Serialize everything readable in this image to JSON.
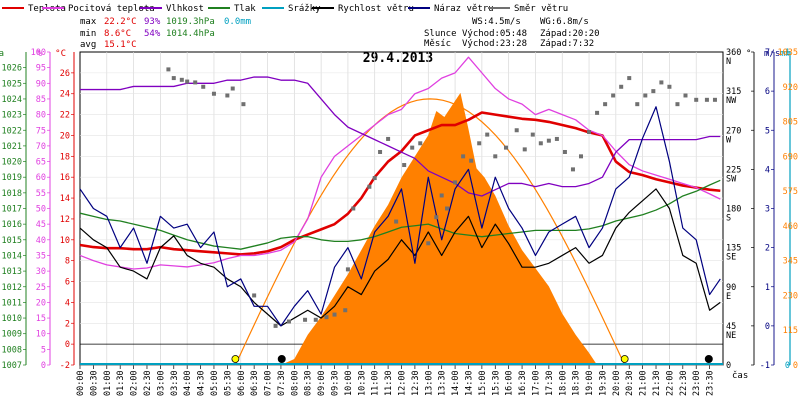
{
  "legend": [
    {
      "label": "Teplota",
      "color": "#e00000"
    },
    {
      "label": "Pocitová teplota",
      "color": "#e040e0"
    },
    {
      "label": "Vlhkost",
      "color": "#8000c0"
    },
    {
      "label": "Tlak",
      "color": "#208020"
    },
    {
      "label": "Srážky",
      "color": "#00a0c0"
    },
    {
      "label": "Rychlost větru",
      "color": "#000000"
    },
    {
      "label": "Náraz větru",
      "color": "#000080"
    },
    {
      "label": "Směr větru",
      "color": "#707070"
    }
  ],
  "stats": {
    "max_label": "max",
    "max_temp": "22.2°C",
    "max_hum": "93%",
    "max_press": "1019.3hPa",
    "max_rain": "0.0mm",
    "min_label": "min",
    "min_temp": "8.6°C",
    "min_hum": "54%",
    "min_press": "1014.4hPa",
    "avg_label": "avg",
    "avg_temp": "15.1°C"
  },
  "wind_info": {
    "ws": "WS:4.5m/s",
    "wg": "WG:6.8m/s"
  },
  "sun_info": {
    "label": "Slunce",
    "rise": "Východ:05:48",
    "set": "Západ:20:20"
  },
  "moon_info": {
    "label": "Měsíc",
    "rise": "Východ:23:28",
    "set": "Západ:7:32"
  },
  "chart_data": {
    "type": "line",
    "title": "29.4.2013",
    "xlabel": "čas",
    "x_ticks": [
      "00:00",
      "00:30",
      "01:00",
      "01:30",
      "02:00",
      "02:30",
      "03:00",
      "03:30",
      "04:00",
      "04:30",
      "05:00",
      "05:30",
      "06:00",
      "06:30",
      "07:00",
      "07:30",
      "08:00",
      "08:30",
      "09:00",
      "09:30",
      "10:00",
      "10:30",
      "11:00",
      "11:30",
      "12:00",
      "12:30",
      "13:00",
      "13:30",
      "14:00",
      "14:30",
      "15:00",
      "15:30",
      "16:00",
      "16:30",
      "17:00",
      "17:30",
      "18:00",
      "18:30",
      "19:00",
      "19:30",
      "20:00",
      "20:30",
      "21:00",
      "21:30",
      "22:00",
      "22:30",
      "23:00",
      "23:30"
    ],
    "axes": {
      "hpa": {
        "label": "hPa",
        "color": "#208020",
        "range": [
          1007,
          1027
        ],
        "ticks": [
          1007,
          1008,
          1009,
          1010,
          1011,
          1012,
          1013,
          1014,
          1015,
          1016,
          1017,
          1018,
          1019,
          1020,
          1021,
          1022,
          1023,
          1024,
          1025,
          1026
        ]
      },
      "pct": {
        "label": "%",
        "color": "#e040e0",
        "range": [
          0,
          100
        ],
        "ticks": [
          0,
          5,
          10,
          15,
          20,
          25,
          30,
          35,
          40,
          45,
          50,
          55,
          60,
          65,
          70,
          75,
          80,
          85,
          90,
          95,
          100
        ]
      },
      "temp": {
        "label": "°C",
        "color": "#e00000",
        "range": [
          -2,
          28
        ],
        "ticks": [
          -2,
          0,
          2,
          4,
          6,
          8,
          10,
          12,
          14,
          16,
          18,
          20,
          22,
          24,
          26
        ]
      },
      "dir": {
        "label": "°",
        "color": "#000000",
        "range": [
          0,
          360
        ],
        "ticks": [
          0,
          45,
          90,
          135,
          180,
          225,
          270,
          315,
          360
        ],
        "labels": [
          "",
          "NE",
          "E",
          "SE",
          "S",
          "SW",
          "W",
          "NW",
          "N"
        ]
      },
      "wind": {
        "label": "m/s",
        "color": "#000080",
        "range": [
          -1,
          7
        ],
        "ticks": [
          -1,
          0,
          1,
          2,
          3,
          4,
          5,
          6,
          7
        ]
      },
      "rain": {
        "label": "mm",
        "color": "#00a0c0",
        "range": [
          0,
          1
        ],
        "ticks": [
          0,
          1
        ]
      },
      "solar": {
        "label": "W",
        "color": "#ff8000",
        "range": [
          0,
          1035
        ],
        "ticks": [
          0,
          115,
          230,
          345,
          460,
          575,
          690,
          805,
          920,
          1035
        ]
      }
    },
    "series": [
      {
        "name": "Teplota",
        "axis": "temp",
        "color": "#e00000",
        "x": [
          0,
          0.5,
          1,
          1.5,
          2,
          2.5,
          3,
          3.5,
          4,
          4.5,
          5,
          5.5,
          6,
          6.5,
          7,
          7.5,
          8,
          8.5,
          9,
          9.5,
          10,
          10.5,
          11,
          11.5,
          12,
          12.5,
          13,
          13.5,
          14,
          14.5,
          15,
          15.5,
          16,
          16.5,
          17,
          17.5,
          18,
          18.5,
          19,
          19.5,
          20,
          20.5,
          21,
          21.5,
          22,
          22.5,
          23,
          23.5,
          23.9
        ],
        "y": [
          9.5,
          9.3,
          9.2,
          9.2,
          9.1,
          9.1,
          9.3,
          9.1,
          9.0,
          8.9,
          8.8,
          8.7,
          8.6,
          8.7,
          8.9,
          9.3,
          10.0,
          10.5,
          11.0,
          11.5,
          12.5,
          14.0,
          16.0,
          17.5,
          18.5,
          20.0,
          20.5,
          21.0,
          21.0,
          21.5,
          22.2,
          22.0,
          21.8,
          21.6,
          21.5,
          21.3,
          21.0,
          20.7,
          20.3,
          20.0,
          17.5,
          16.5,
          16.2,
          15.8,
          15.5,
          15.2,
          15.0,
          14.8,
          14.7
        ]
      },
      {
        "name": "Pocitová teplota",
        "axis": "temp",
        "color": "#e040e0",
        "x": [
          0,
          0.5,
          1,
          1.5,
          2,
          2.5,
          3,
          3.5,
          4,
          4.5,
          5,
          5.5,
          6,
          6.5,
          7,
          7.5,
          8,
          8.5,
          9,
          9.5,
          10,
          10.5,
          11,
          11.5,
          12,
          12.5,
          13,
          13.5,
          14,
          14.5,
          15,
          15.5,
          16,
          16.5,
          17,
          17.5,
          18,
          18.5,
          19,
          19.5,
          20,
          20.5,
          21,
          21.5,
          22,
          22.5,
          23,
          23.5,
          23.9
        ],
        "y": [
          8.5,
          8.0,
          7.6,
          7.4,
          7.2,
          7.3,
          7.6,
          7.5,
          7.4,
          7.6,
          7.8,
          8.2,
          8.5,
          8.5,
          8.7,
          9.0,
          9.8,
          12.0,
          16.0,
          18.0,
          19.0,
          20.0,
          21.0,
          22.0,
          22.5,
          24.0,
          24.5,
          25.5,
          26.0,
          27.5,
          26.0,
          24.5,
          23.5,
          23.0,
          22.0,
          22.5,
          22.0,
          21.5,
          20.5,
          20.0,
          18.5,
          17.2,
          16.6,
          16.2,
          15.8,
          15.4,
          15.0,
          14.4,
          13.9
        ]
      },
      {
        "name": "Vlhkost",
        "axis": "pct",
        "color": "#8000c0",
        "x": [
          0,
          0.5,
          1,
          1.5,
          2,
          2.5,
          3,
          3.5,
          4,
          4.5,
          5,
          5.5,
          6,
          6.5,
          7,
          7.5,
          8,
          8.5,
          9,
          9.5,
          10,
          10.5,
          11,
          11.5,
          12,
          12.5,
          13,
          13.5,
          14,
          14.5,
          15,
          15.5,
          16,
          16.5,
          17,
          17.5,
          18,
          18.5,
          19,
          19.5,
          20,
          20.5,
          21,
          21.5,
          22,
          22.5,
          23,
          23.5,
          23.9
        ],
        "y": [
          88,
          88,
          88,
          88,
          89,
          89,
          89,
          89,
          90,
          90,
          90,
          91,
          91,
          92,
          92,
          91,
          91,
          90,
          85,
          80,
          76,
          74,
          72,
          70,
          68,
          66,
          62,
          60,
          58,
          55,
          54,
          56,
          58,
          58,
          57,
          58,
          57,
          57,
          58,
          60,
          68,
          72,
          72,
          72,
          72,
          72,
          72,
          73,
          73
        ]
      },
      {
        "name": "Tlak",
        "axis": "hpa",
        "color": "#208020",
        "x": [
          0,
          0.5,
          1,
          1.5,
          2,
          2.5,
          3,
          3.5,
          4,
          4.5,
          5,
          5.5,
          6,
          6.5,
          7,
          7.5,
          8,
          8.5,
          9,
          9.5,
          10,
          10.5,
          11,
          11.5,
          12,
          12.5,
          13,
          13.5,
          14,
          14.5,
          15,
          15.5,
          16,
          16.5,
          17,
          17.5,
          18,
          18.5,
          19,
          19.5,
          20,
          20.5,
          21,
          21.5,
          22,
          22.5,
          23,
          23.5,
          23.9
        ],
        "y": [
          1016.7,
          1016.5,
          1016.3,
          1016.2,
          1016.0,
          1015.8,
          1015.6,
          1015.3,
          1015.0,
          1014.8,
          1014.6,
          1014.5,
          1014.4,
          1014.6,
          1014.8,
          1015.1,
          1015.2,
          1015.2,
          1015.0,
          1014.9,
          1014.9,
          1015.0,
          1015.2,
          1015.5,
          1015.8,
          1015.9,
          1016.0,
          1015.7,
          1015.4,
          1015.3,
          1015.2,
          1015.3,
          1015.4,
          1015.5,
          1015.6,
          1015.6,
          1015.6,
          1015.6,
          1015.7,
          1015.9,
          1016.2,
          1016.4,
          1016.6,
          1016.9,
          1017.3,
          1017.8,
          1018.1,
          1018.5,
          1018.8
        ]
      },
      {
        "name": "Rychlost větru",
        "axis": "wind",
        "color": "#000000",
        "x": [
          0,
          0.5,
          1,
          1.5,
          2,
          2.5,
          3,
          3.5,
          4,
          4.5,
          5,
          5.5,
          6,
          6.5,
          7,
          7.5,
          8,
          8.5,
          9,
          9.5,
          10,
          10.5,
          11,
          11.5,
          12,
          12.5,
          13,
          13.5,
          14,
          14.5,
          15,
          15.5,
          16,
          16.5,
          17,
          17.5,
          18,
          18.5,
          19,
          19.5,
          20,
          20.5,
          21,
          21.5,
          22,
          22.5,
          23,
          23.5,
          23.9
        ],
        "y": [
          2.5,
          2.2,
          2.0,
          1.5,
          1.4,
          1.2,
          2.0,
          2.3,
          1.8,
          1.6,
          1.5,
          1.2,
          1.0,
          0.6,
          0.3,
          0.0,
          0.2,
          0.4,
          0.2,
          0.5,
          1.0,
          0.8,
          1.4,
          1.7,
          2.2,
          1.8,
          2.4,
          1.8,
          2.4,
          2.8,
          2.0,
          2.6,
          2.1,
          1.5,
          1.5,
          1.6,
          1.8,
          2.0,
          1.6,
          1.8,
          2.5,
          2.9,
          3.2,
          3.5,
          3.0,
          1.8,
          1.6,
          0.4,
          0.6
        ]
      },
      {
        "name": "Náraz větru",
        "axis": "wind",
        "color": "#000080",
        "x": [
          0,
          0.5,
          1,
          1.5,
          2,
          2.5,
          3,
          3.5,
          4,
          4.5,
          5,
          5.5,
          6,
          6.5,
          7,
          7.5,
          8,
          8.5,
          9,
          9.5,
          10,
          10.5,
          11,
          11.5,
          12,
          12.5,
          13,
          13.5,
          14,
          14.5,
          15,
          15.5,
          16,
          16.5,
          17,
          17.5,
          18,
          18.5,
          19,
          19.5,
          20,
          20.5,
          21,
          21.5,
          22,
          22.5,
          23,
          23.5,
          23.9
        ],
        "y": [
          3.5,
          3.0,
          2.8,
          2.0,
          2.5,
          1.6,
          2.8,
          2.5,
          2.6,
          2.0,
          2.4,
          1.0,
          1.2,
          0.5,
          0.5,
          0.0,
          0.5,
          0.9,
          0.3,
          1.5,
          2.0,
          1.2,
          2.4,
          2.8,
          3.5,
          1.6,
          3.8,
          2.2,
          3.5,
          4.0,
          2.5,
          3.8,
          3.0,
          2.5,
          1.8,
          2.4,
          2.6,
          2.8,
          2.0,
          2.5,
          3.5,
          3.8,
          4.8,
          5.6,
          4.2,
          2.5,
          2.2,
          0.8,
          1.2
        ]
      },
      {
        "name": "Směr větru",
        "axis": "dir",
        "type": "scatter",
        "color": "#707070",
        "x": [
          3.3,
          3.5,
          3.8,
          4.0,
          4.3,
          4.6,
          5.0,
          5.5,
          5.7,
          6.1,
          6.5,
          7.3,
          7.8,
          8.4,
          8.8,
          9.2,
          9.5,
          9.9,
          10.0,
          10.2,
          10.8,
          11.0,
          11.2,
          11.5,
          11.8,
          12.1,
          12.4,
          12.7,
          13.0,
          13.3,
          13.5,
          13.7,
          14.0,
          14.3,
          14.6,
          14.9,
          15.2,
          15.5,
          15.9,
          16.3,
          16.6,
          16.9,
          17.2,
          17.5,
          17.8,
          18.1,
          18.4,
          18.7,
          19.0,
          19.3,
          19.6,
          19.9,
          20.2,
          20.5,
          20.8,
          21.1,
          21.4,
          21.7,
          22.0,
          22.3,
          22.6,
          23.0,
          23.4,
          23.7
        ],
        "y": [
          340,
          330,
          328,
          326,
          325,
          320,
          312,
          310,
          318,
          300,
          80,
          45,
          50,
          52,
          52,
          55,
          58,
          63,
          110,
          180,
          205,
          215,
          245,
          260,
          165,
          230,
          250,
          255,
          140,
          170,
          195,
          180,
          210,
          240,
          235,
          255,
          265,
          240,
          250,
          270,
          248,
          265,
          255,
          258,
          260,
          245,
          225,
          240,
          268,
          290,
          300,
          310,
          320,
          330,
          300,
          310,
          315,
          325,
          320,
          300,
          310,
          305,
          305,
          305
        ]
      }
    ],
    "solar": {
      "axis": "solar",
      "color": "#ff8000",
      "x": [
        7.5,
        8.0,
        8.5,
        9.0,
        9.5,
        10.0,
        10.5,
        11.0,
        11.5,
        12.0,
        12.5,
        13.0,
        13.3,
        13.6,
        13.9,
        14.2,
        14.5,
        14.8,
        15.1,
        15.5,
        16.0,
        16.5,
        17.0,
        17.5,
        18.0,
        18.5,
        19.0,
        19.3
      ],
      "y": [
        0,
        20,
        100,
        160,
        230,
        300,
        380,
        460,
        530,
        620,
        690,
        760,
        840,
        820,
        860,
        900,
        780,
        650,
        620,
        560,
        460,
        380,
        320,
        260,
        170,
        100,
        40,
        0
      ]
    },
    "sun_curve": {
      "rise": 5.8,
      "set": 20.33,
      "peak": 880
    },
    "markers": [
      {
        "type": "sunrise",
        "x": 5.8
      },
      {
        "type": "sunset",
        "x": 20.33
      },
      {
        "type": "moonset",
        "x": 7.53
      },
      {
        "type": "moonrise",
        "x": 23.47
      }
    ]
  }
}
